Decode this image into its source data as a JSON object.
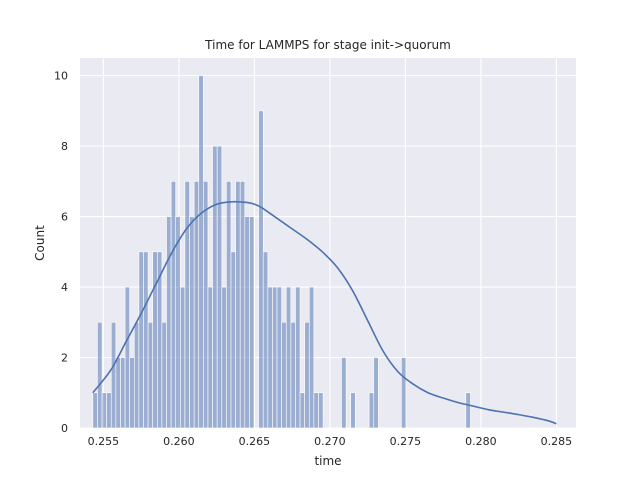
{
  "chart_data": {
    "type": "bar",
    "title": "Time for LAMMPS for stage init->quorum",
    "xlabel": "time",
    "ylabel": "Count",
    "xlim": [
      0.25345,
      0.2863
    ],
    "ylim": [
      0,
      10.5
    ],
    "xticks": [
      0.255,
      0.26,
      0.265,
      0.27,
      0.275,
      0.28,
      0.285
    ],
    "xtick_labels": [
      "0.255",
      "0.260",
      "0.265",
      "0.270",
      "0.275",
      "0.280",
      "0.285"
    ],
    "yticks": [
      0,
      2,
      4,
      6,
      8,
      10
    ],
    "ytick_labels": [
      "0",
      "2",
      "4",
      "6",
      "8",
      "10"
    ],
    "grid": true,
    "background_color": "#eaeaf2",
    "bar_color": "#4c72b0",
    "line_color": "#4c72b0",
    "bin_start": 0.2543,
    "bin_width": 0.000305,
    "counts": [
      1,
      3,
      1,
      1,
      3,
      2,
      2,
      4,
      2,
      3,
      5,
      5,
      3,
      5,
      5,
      3,
      6,
      7,
      6,
      4,
      7,
      6,
      7,
      10,
      7,
      4,
      8,
      8,
      4,
      7,
      5,
      7,
      7,
      6,
      6,
      0,
      9,
      5,
      4,
      4,
      4,
      3,
      4,
      3,
      4,
      1,
      3,
      4,
      1,
      1,
      0,
      0,
      0,
      0,
      2,
      0,
      1,
      0,
      0,
      0,
      1,
      2,
      0,
      0,
      0,
      0,
      0,
      2,
      0,
      0,
      0,
      0,
      0,
      0,
      0,
      0,
      0,
      0,
      0,
      0,
      0,
      1
    ],
    "kde": {
      "x": [
        0.2543,
        0.2555,
        0.2565,
        0.2575,
        0.2585,
        0.2595,
        0.2605,
        0.2615,
        0.2625,
        0.2635,
        0.2645,
        0.265,
        0.2655,
        0.2665,
        0.2675,
        0.2685,
        0.2695,
        0.2705,
        0.2715,
        0.2725,
        0.2735,
        0.2745,
        0.2755,
        0.2765,
        0.2775,
        0.2785,
        0.2795,
        0.2805,
        0.2815,
        0.2825,
        0.2835,
        0.2845,
        0.285
      ],
      "y": [
        1.0,
        1.65,
        2.45,
        3.25,
        4.1,
        4.95,
        5.65,
        6.1,
        6.35,
        6.42,
        6.4,
        6.35,
        6.25,
        5.95,
        5.65,
        5.35,
        5.0,
        4.55,
        3.9,
        3.05,
        2.2,
        1.6,
        1.25,
        1.0,
        0.85,
        0.72,
        0.62,
        0.52,
        0.45,
        0.38,
        0.3,
        0.2,
        0.12
      ]
    }
  }
}
